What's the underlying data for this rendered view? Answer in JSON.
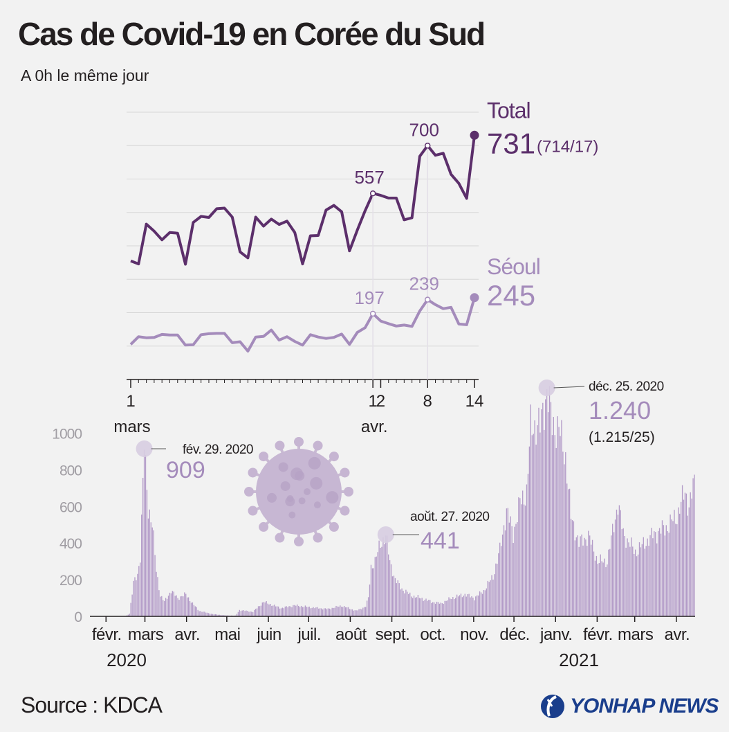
{
  "title": "Cas de Covid-19 en Corée du Sud",
  "subtitle": "A 0h le même jour",
  "source": "Source : KDCA",
  "logo_text": "YONHAP NEWS",
  "colors": {
    "total": "#5c2f6b",
    "seoul": "#a48bbb",
    "bars": "#b39bc8",
    "grid": "#d6d6d6",
    "axis": "#231f20",
    "yaxis_text": "#a09da3"
  },
  "chart_data": [
    {
      "type": "line",
      "x": [
        "1 mars",
        "2",
        "3",
        "4",
        "5",
        "6",
        "7",
        "8",
        "9",
        "10",
        "11",
        "12",
        "13",
        "14",
        "15",
        "16",
        "17",
        "18",
        "19",
        "20",
        "21",
        "22",
        "23",
        "24",
        "25",
        "26",
        "27",
        "28",
        "29",
        "30",
        "31",
        "1 avr.",
        "2",
        "3",
        "4",
        "5",
        "6",
        "7",
        "8",
        "9",
        "10",
        "11",
        "12",
        "13",
        "14"
      ],
      "xtick_labels": [
        {
          "index": 0,
          "label": "1"
        },
        {
          "index": 31,
          "label": "1"
        },
        {
          "index": 32,
          "label": "2"
        },
        {
          "index": 38,
          "label": "8"
        },
        {
          "index": 44,
          "label": "14"
        }
      ],
      "month_labels": [
        {
          "index": 0,
          "label": "mars"
        },
        {
          "index": 31,
          "label": "avr."
        }
      ],
      "series": [
        {
          "name": "Total",
          "values": [
            355,
            346,
            465,
            444,
            418,
            440,
            438,
            345,
            470,
            488,
            485,
            511,
            513,
            486,
            382,
            364,
            486,
            459,
            480,
            464,
            474,
            440,
            346,
            430,
            431,
            507,
            521,
            502,
            385,
            447,
            505,
            557,
            551,
            543,
            543,
            478,
            484,
            668,
            700,
            671,
            677,
            614,
            587,
            542,
            731
          ],
          "labels": [
            {
              "index": 31,
              "text": "557"
            },
            {
              "index": 38,
              "text": "700"
            }
          ],
          "end_value": "731",
          "end_detail": "(714/17)"
        },
        {
          "name": "Séoul",
          "values": [
            105,
            128,
            125,
            126,
            135,
            133,
            133,
            103,
            104,
            134,
            137,
            138,
            138,
            110,
            113,
            85,
            127,
            129,
            148,
            118,
            128,
            114,
            103,
            134,
            127,
            123,
            126,
            136,
            105,
            141,
            155,
            197,
            175,
            167,
            160,
            163,
            159,
            205,
            239,
            224,
            212,
            216,
            166,
            164,
            245
          ],
          "labels": [
            {
              "index": 31,
              "text": "197"
            },
            {
              "index": 38,
              "text": "239"
            }
          ],
          "end_value": "245"
        }
      ],
      "ylim": [
        0,
        800
      ],
      "grid": true
    },
    {
      "type": "bar",
      "x_start": "2020-01-20",
      "x_end": "2021-04-14",
      "month_labels": [
        "févr.",
        "mars",
        "avr.",
        "mai",
        "juin",
        "juil.",
        "août",
        "sept.",
        "oct.",
        "nov.",
        "déc.",
        "janv.",
        "févr.",
        "mars",
        "avr."
      ],
      "year_labels": [
        {
          "month_index": 0,
          "label": "2020"
        },
        {
          "month_index": 11,
          "label": "2021"
        }
      ],
      "yticks": [
        0,
        200,
        400,
        600,
        800,
        1000
      ],
      "ylim": [
        0,
        1000
      ],
      "anchors": [
        [
          "2020-01-20",
          1
        ],
        [
          "2020-02-15",
          0
        ],
        [
          "2020-02-18",
          15
        ],
        [
          "2020-02-21",
          180
        ],
        [
          "2020-02-24",
          230
        ],
        [
          "2020-02-26",
          330
        ],
        [
          "2020-02-29",
          909
        ],
        [
          "2020-03-03",
          600
        ],
        [
          "2020-03-06",
          500
        ],
        [
          "2020-03-09",
          250
        ],
        [
          "2020-03-12",
          114
        ],
        [
          "2020-03-15",
          80
        ],
        [
          "2020-03-20",
          140
        ],
        [
          "2020-03-25",
          100
        ],
        [
          "2020-03-31",
          120
        ],
        [
          "2020-04-05",
          70
        ],
        [
          "2020-04-10",
          30
        ],
        [
          "2020-04-20",
          12
        ],
        [
          "2020-04-30",
          5
        ],
        [
          "2020-05-07",
          4
        ],
        [
          "2020-05-10",
          34
        ],
        [
          "2020-05-20",
          25
        ],
        [
          "2020-05-28",
          79
        ],
        [
          "2020-06-10",
          45
        ],
        [
          "2020-06-20",
          60
        ],
        [
          "2020-07-01",
          50
        ],
        [
          "2020-07-15",
          40
        ],
        [
          "2020-07-25",
          58
        ],
        [
          "2020-08-05",
          30
        ],
        [
          "2020-08-12",
          54
        ],
        [
          "2020-08-14",
          100
        ],
        [
          "2020-08-16",
          270
        ],
        [
          "2020-08-19",
          300
        ],
        [
          "2020-08-23",
          397
        ],
        [
          "2020-08-27",
          441
        ],
        [
          "2020-08-30",
          300
        ],
        [
          "2020-09-03",
          200
        ],
        [
          "2020-09-08",
          150
        ],
        [
          "2020-09-15",
          113
        ],
        [
          "2020-09-22",
          100
        ],
        [
          "2020-09-30",
          80
        ],
        [
          "2020-10-07",
          70
        ],
        [
          "2020-10-15",
          100
        ],
        [
          "2020-10-25",
          120
        ],
        [
          "2020-11-01",
          100
        ],
        [
          "2020-11-08",
          140
        ],
        [
          "2020-11-15",
          220
        ],
        [
          "2020-11-20",
          360
        ],
        [
          "2020-11-25",
          580
        ],
        [
          "2020-11-30",
          450
        ],
        [
          "2020-12-05",
          620
        ],
        [
          "2020-12-10",
          680
        ],
        [
          "2020-12-13",
          1030
        ],
        [
          "2020-12-17",
          1050
        ],
        [
          "2020-12-20",
          1030
        ],
        [
          "2020-12-25",
          1240
        ],
        [
          "2020-12-29",
          1050
        ],
        [
          "2021-01-03",
          1020
        ],
        [
          "2021-01-08",
          870
        ],
        [
          "2021-01-12",
          540
        ],
        [
          "2021-01-18",
          400
        ],
        [
          "2021-01-25",
          440
        ],
        [
          "2021-02-01",
          300
        ],
        [
          "2021-02-08",
          300
        ],
        [
          "2021-02-16",
          620
        ],
        [
          "2021-02-20",
          450
        ],
        [
          "2021-03-01",
          350
        ],
        [
          "2021-03-15",
          450
        ],
        [
          "2021-03-25",
          490
        ],
        [
          "2021-04-01",
          550
        ],
        [
          "2021-04-07",
          680
        ],
        [
          "2021-04-10",
          600
        ],
        [
          "2021-04-14",
          731
        ]
      ],
      "annotations": [
        {
          "date": "2020-02-29",
          "date_label": "fév. 29. 2020",
          "value": "909"
        },
        {
          "date": "2020-08-27",
          "date_label": "aoŭt. 27. 2020",
          "value": "441"
        },
        {
          "date": "2020-12-25",
          "date_label": "déc. 25. 2020",
          "value": "1.240",
          "detail": "(1.215/25)"
        }
      ]
    }
  ]
}
